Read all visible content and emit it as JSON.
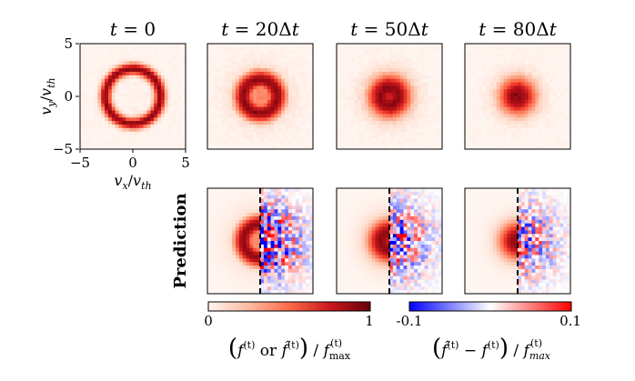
{
  "chart_data": {
    "type": "heatmap",
    "description_units": "velocity normalized by thermal velocity",
    "panels_top": [
      {
        "title": "t = 0",
        "ring_radius": 2.6,
        "ring_width": 0.55,
        "fill_level": 0.02
      },
      {
        "title": "t = 20Δt",
        "ring_radius": 1.6,
        "ring_width": 0.9,
        "fill_level": 0.45
      },
      {
        "title": "t = 50Δt",
        "ring_radius": 0.8,
        "ring_width": 1.3,
        "fill_level": 0.8
      },
      {
        "title": "t = 80Δt",
        "ring_radius": 0.3,
        "ring_width": 1.5,
        "fill_level": 0.95
      }
    ],
    "panels_bottom": [
      {
        "time_index": "20Δt",
        "ring_radius": 1.6,
        "ring_width": 0.9,
        "fill_level": 0.45,
        "error_amplitude": 0.08
      },
      {
        "time_index": "50Δt",
        "ring_radius": 0.8,
        "ring_width": 1.3,
        "fill_level": 0.8,
        "error_amplitude": 0.06
      },
      {
        "time_index": "80Δt",
        "ring_radius": 0.3,
        "ring_width": 1.5,
        "fill_level": 0.95,
        "error_amplitude": 0.05
      }
    ],
    "row_label_bottom": "Prediction",
    "x_label": "v_x/v_th",
    "y_label": "v_y/v_th",
    "x_ticks": [
      -5,
      0,
      5
    ],
    "y_ticks": [
      5,
      0,
      -5
    ],
    "xlim": [
      -5,
      5
    ],
    "ylim": [
      -5,
      5
    ],
    "colorbar_left": {
      "min_label": "0",
      "max_label": "1",
      "range": [
        0,
        1
      ],
      "colormap": "Reds",
      "caption": "(f(t) or f̂(t)) / f(t)max"
    },
    "colorbar_right": {
      "min_label": "-0.1",
      "max_label": "0.1",
      "range": [
        -0.1,
        0.1
      ],
      "colormap": "bwr",
      "caption": "(f̂(t) − f(t)) / f(t)max"
    }
  },
  "labels": {
    "title0_t": "t",
    "title0_eq": " = 0",
    "title1_t": "t",
    "title1_eq": " = 20Δ",
    "title1_t2": "t",
    "title2_t": "t",
    "title2_eq": " = 50Δ",
    "title2_t2": "t",
    "title3_t": "t",
    "title3_eq": " = 80Δ",
    "title3_t2": "t",
    "prediction": "Prediction",
    "xtick_m5": "−5",
    "xtick_0": "0",
    "xtick_5": "5",
    "ytick_5": "5",
    "ytick_0": "0",
    "ytick_m5": "−5",
    "cb1_min": "0",
    "cb1_max": "1",
    "cb2_min": "-0.1",
    "cb2_max": "0.1",
    "xlabel_v": "v",
    "xlabel_sub": "x",
    "xlabel_slash": "/",
    "xlabel_v2": "v",
    "xlabel_sub2": "th",
    "ylabel_v": "v",
    "ylabel_sub": "y",
    "ylabel_slash": "/",
    "ylabel_v2": "v",
    "ylabel_sub2": "th",
    "cap1_open": "(",
    "cap1_f": "f",
    "cap1_sup": "(t)",
    "cap1_or": " or ",
    "cap1_fh": "f̂",
    "cap1_sup2": "(t)",
    "cap1_close": ")",
    "cap1_slash": " / ",
    "cap1_f3": "f",
    "cap1_sub3": "max",
    "cap1_sup3": "(t)",
    "cap2_open": "(",
    "cap2_fh": "f̂",
    "cap2_sup": "(t)",
    "cap2_minus": " − ",
    "cap2_f": "f",
    "cap2_sup2": "(t)",
    "cap2_close": ")",
    "cap2_slash": " / ",
    "cap2_f3": "f",
    "cap2_sub3": "max",
    "cap2_sup3": "(t)"
  }
}
